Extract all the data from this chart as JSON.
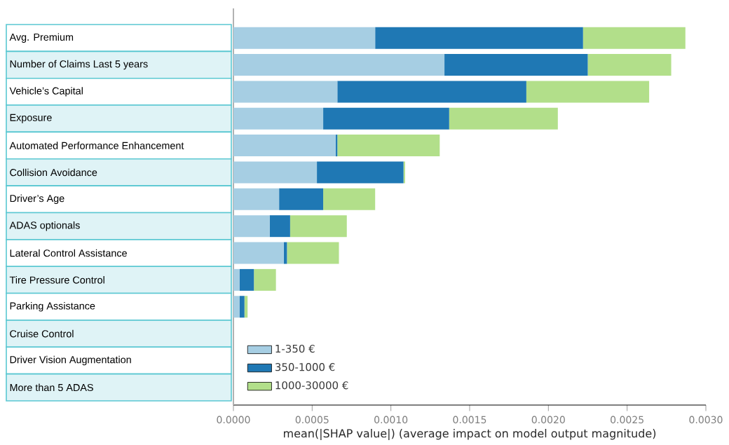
{
  "chart_data": {
    "type": "bar",
    "orientation": "horizontal",
    "stacked": true,
    "xlabel": "mean(|SHAP value|) (average impact on model output magnitude)",
    "categories": [
      "Avg. Premium",
      "Number of Claims Last 5 years",
      "Vehicle’s Capital",
      "Exposure",
      "Automated Performance Enhancement",
      "Collision Avoidance",
      "Driver’s Age",
      "ADAS optionals",
      "Lateral Control Assistance",
      "Tire Pressure Control",
      "Parking Assistance",
      "Cruise Control",
      "Driver Vision Augmentation",
      "More than 5 ADAS"
    ],
    "series": [
      {
        "name": "1-350 €",
        "color": "#a6cee3",
        "values": [
          0.0009,
          0.00134,
          0.00066,
          0.00057,
          0.00065,
          0.00053,
          0.00029,
          0.00023,
          0.00032,
          4e-05,
          4e-05,
          0,
          0,
          0
        ]
      },
      {
        "name": "350-1000 €",
        "color": "#1f78b4",
        "values": [
          0.00132,
          0.00091,
          0.0012,
          0.0008,
          1e-05,
          0.00055,
          0.00028,
          0.00013,
          2e-05,
          9e-05,
          3e-05,
          0,
          0,
          0
        ]
      },
      {
        "name": "1000-30000 €",
        "color": "#b2df8a",
        "values": [
          0.00065,
          0.00053,
          0.00078,
          0.00069,
          0.00065,
          1e-05,
          0.00033,
          0.00036,
          0.00033,
          0.00014,
          2e-05,
          0,
          0,
          0
        ]
      }
    ],
    "xlim": [
      0,
      0.003
    ],
    "xticks": [
      {
        "value": 0,
        "label": "0.0000"
      },
      {
        "value": 0.0005,
        "label": "0.0005"
      },
      {
        "value": 0.001,
        "label": "0.0010"
      },
      {
        "value": 0.0015,
        "label": "0.0015"
      },
      {
        "value": 0.002,
        "label": "0.0020"
      },
      {
        "value": 0.0025,
        "label": "0.0025"
      },
      {
        "value": 0.003,
        "label": "0.0030"
      }
    ],
    "legend": "bottom left",
    "grid": false
  }
}
